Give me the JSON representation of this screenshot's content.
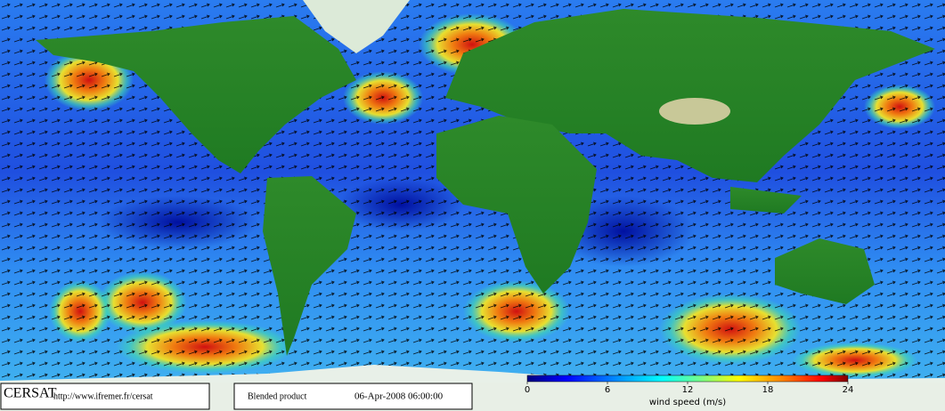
{
  "footer": {
    "logo": "CERSAT",
    "url": "http://www.ifremer.fr/cersat",
    "product": "Blended product",
    "datetime": "06-Apr-2008 06:00:00"
  },
  "colorbar": {
    "label": "wind speed (m/s)",
    "range": [
      0,
      24
    ],
    "ticks": [
      0,
      6,
      12,
      18,
      24
    ]
  }
}
